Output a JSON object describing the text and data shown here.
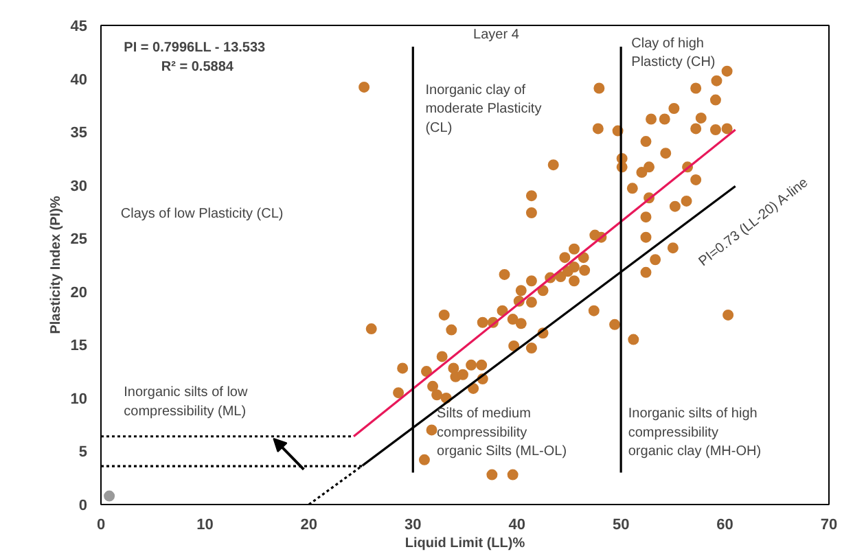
{
  "chart_data": {
    "type": "scatter",
    "title": "Layer 4",
    "xlabel": "Liquid Limit (LL)%",
    "ylabel": "Plasticity Index (PI)%",
    "xlim": [
      0,
      70
    ],
    "ylim": [
      0,
      45
    ],
    "xticks": [
      0,
      10,
      20,
      30,
      40,
      50,
      60,
      70
    ],
    "yticks": [
      0,
      5,
      10,
      15,
      20,
      25,
      30,
      35,
      40,
      45
    ],
    "grid": false,
    "marker": "circle",
    "series": [
      {
        "color": "#c97a2e",
        "x": [
          25.3,
          26.0,
          29.0,
          28.6,
          31.3,
          31.9,
          32.8,
          33.0,
          33.7,
          32.3,
          33.2,
          33.9,
          34.1,
          34.8,
          35.6,
          36.6,
          36.7,
          35.8,
          31.8,
          31.1,
          37.6,
          39.6,
          36.7,
          37.7,
          38.6,
          39.6,
          40.4,
          39.7,
          41.4,
          42.5,
          38.8,
          40.4,
          40.2,
          41.4,
          41.4,
          42.5,
          43.2,
          44.2,
          44.6,
          41.4,
          41.4,
          43.5,
          47.9,
          47.8,
          49.7,
          50.1,
          50.1,
          47.5,
          48.1,
          45.5,
          46.4,
          45.5,
          44.9,
          46.5,
          45.5,
          47.4,
          49.4,
          51.2,
          52.4,
          53.3,
          55.0,
          52.4,
          52.4,
          55.2,
          56.3,
          52.7,
          51.1,
          52.0,
          52.7,
          54.3,
          56.4,
          57.2,
          52.4,
          52.9,
          54.2,
          55.1,
          57.2,
          59.2,
          60.2,
          59.1,
          57.7,
          57.2,
          59.1,
          60.2,
          60.3
        ],
        "values": [
          39.2,
          16.5,
          12.8,
          10.5,
          12.5,
          11.1,
          13.9,
          17.8,
          16.4,
          10.3,
          10.0,
          12.8,
          12.0,
          12.2,
          13.1,
          13.1,
          11.8,
          10.9,
          7.0,
          4.2,
          2.8,
          2.8,
          17.1,
          17.1,
          18.2,
          17.4,
          17.0,
          14.9,
          14.7,
          16.1,
          21.6,
          20.1,
          19.1,
          19.0,
          21.0,
          20.1,
          21.3,
          21.4,
          23.2,
          29.0,
          27.4,
          31.9,
          39.1,
          35.3,
          35.1,
          32.5,
          31.7,
          25.3,
          25.1,
          24.0,
          23.2,
          22.3,
          21.9,
          22.0,
          21.0,
          18.2,
          16.9,
          15.5,
          21.8,
          23.0,
          24.1,
          25.1,
          27.0,
          28.0,
          28.5,
          28.8,
          29.7,
          31.2,
          31.7,
          33.0,
          31.7,
          30.5,
          34.1,
          36.2,
          36.2,
          37.2,
          39.1,
          39.8,
          40.7,
          38.0,
          36.3,
          35.3,
          35.2,
          35.3,
          17.8
        ]
      },
      {
        "color": "#9a9a9a",
        "x": [
          0.8
        ],
        "values": [
          0.8
        ]
      },
      {
        "type": "line",
        "marker": "none",
        "color": "#e8185a",
        "line_style": "solid",
        "x": [
          24.3,
          61
        ],
        "values": [
          6.4,
          35.2
        ]
      },
      {
        "type": "line",
        "marker": "none",
        "color": "#000000",
        "line_style": "solid",
        "x": [
          25.2,
          61
        ],
        "values": [
          3.7,
          29.9
        ]
      },
      {
        "type": "line",
        "marker": "none",
        "color": "#000000",
        "line_style": "dotted",
        "x": [
          20,
          25.2
        ],
        "values": [
          0,
          3.7
        ]
      },
      {
        "type": "line",
        "marker": "none",
        "color": "#000000",
        "line_style": "dotted",
        "x": [
          0,
          24.3
        ],
        "values": [
          6.4,
          6.4
        ]
      },
      {
        "type": "line",
        "marker": "none",
        "color": "#000000",
        "line_style": "dotted",
        "x": [
          0,
          25.2
        ],
        "values": [
          3.6,
          3.6
        ]
      },
      {
        "type": "line",
        "marker": "none",
        "color": "#000000",
        "line_style": "solid",
        "x": [
          30,
          30
        ],
        "values": [
          3,
          43
        ]
      },
      {
        "type": "line",
        "marker": "none",
        "color": "#000000",
        "line_style": "solid",
        "x": [
          50,
          50
        ],
        "values": [
          3,
          43
        ]
      }
    ],
    "annotations": [
      "PI = 0.7996LL - 13.533",
      "R² = 0.5884",
      "Clays of low Plasticity (CL)",
      "Inorganic clay of\nmoderate Plasticity\n(CL)",
      "Clay of high\nPlasticty (CH)",
      "PI=0.73 (LL-20) A-line",
      "Inorganic  silts of low\ncompressibility (ML)",
      "Silts of medium\ncompressibility\norganic Silts (ML-OL)",
      "Inorganic silts of high\ncompressibility\norganic clay  (MH-OH)"
    ]
  }
}
